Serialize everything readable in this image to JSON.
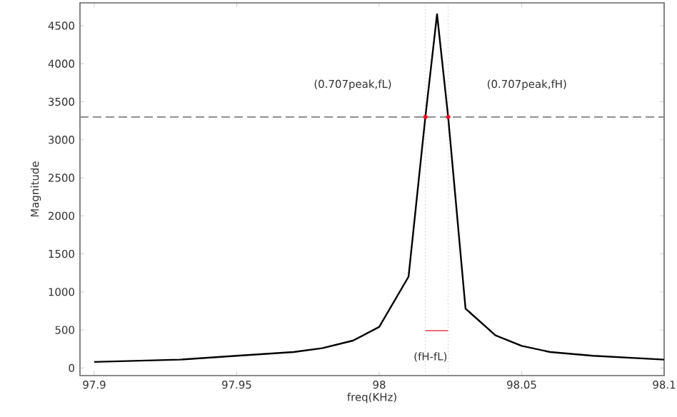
{
  "chart_data": {
    "type": "line",
    "xlabel": "freq(KHz)",
    "ylabel": "Magnitude",
    "xlim": [
      97.895,
      98.1
    ],
    "ylim": [
      -100,
      4800
    ],
    "xticks": [
      97.9,
      97.95,
      98,
      98.05,
      98.1
    ],
    "yticks": [
      0,
      500,
      1000,
      1500,
      2000,
      2500,
      3000,
      3500,
      4000,
      4500
    ],
    "grid": false,
    "series": [
      {
        "color": "#000000",
        "x": [
          97.9,
          97.93,
          97.95,
          97.97,
          97.98,
          97.9908,
          98.0,
          98.0103,
          98.0162,
          98.0203,
          98.0242,
          98.0303,
          98.0408,
          98.05,
          98.06,
          98.075,
          98.1
        ],
        "values": [
          80,
          110,
          160,
          210,
          260,
          360,
          540,
          1200,
          3300,
          4650,
          3300,
          780,
          430,
          290,
          210,
          160,
          110
        ]
      },
      {
        "type": "scatter",
        "color": "#e8102a",
        "marker": "circle",
        "x": [
          98.0162,
          98.0242
        ],
        "values": [
          3300,
          3300
        ]
      },
      {
        "type": "line",
        "color": "#e8102a",
        "marker": "none",
        "x": [
          98.0162,
          98.0242
        ],
        "values": [
          490,
          490
        ]
      }
    ],
    "ref_lines": [
      {
        "axis": "y",
        "value": 3300,
        "color": "#808080",
        "line_style": "dashed"
      },
      {
        "axis": "x",
        "value": 98.0162,
        "color": "#808080",
        "line_style": "dotted"
      },
      {
        "axis": "x",
        "value": 98.0242,
        "color": "#808080",
        "line_style": "dotted"
      }
    ],
    "annotations": [
      "(0.707peak,fL)",
      "(0.707peak,fH)",
      "(fH-fL)"
    ]
  }
}
